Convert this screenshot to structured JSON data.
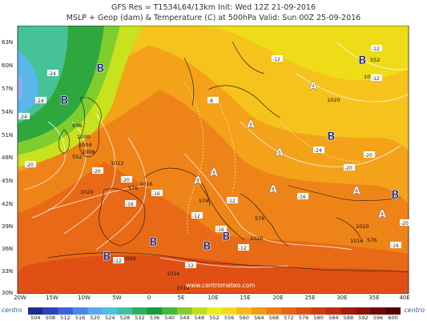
{
  "header": {
    "line1": "GFS Res = T1534L64/13km    Init: Wed 12Z 21-09-2016",
    "line2": "MSLP + Geop (dam) & Temperature (C) at 500hPa   Valid: Sun 00Z 25-09-2016"
  },
  "axes": {
    "lat_labels": [
      "63N",
      "60N",
      "57N",
      "54N",
      "51N",
      "48N",
      "45N",
      "42N",
      "39N",
      "36N",
      "33N",
      "30N"
    ],
    "lon_labels": [
      "20W",
      "15W",
      "10W",
      "5W",
      "0",
      "5E",
      "10E",
      "15E",
      "20E",
      "25E",
      "30E",
      "35E",
      "40E"
    ]
  },
  "colorbar": {
    "values": [
      "504",
      "508",
      "512",
      "516",
      "520",
      "524",
      "528",
      "532",
      "536",
      "540",
      "544",
      "548",
      "552",
      "556",
      "560",
      "564",
      "568",
      "572",
      "576",
      "580",
      "584",
      "588",
      "592",
      "596",
      "600"
    ],
    "colors": [
      "#1b2c8c",
      "#2a44b8",
      "#3b62d8",
      "#4e86e8",
      "#5aa8f0",
      "#4ec2d8",
      "#3fc0a0",
      "#2eae60",
      "#1a9a3a",
      "#43b83a",
      "#86cc2c",
      "#bede1e",
      "#eded1c",
      "#f8d81c",
      "#f8b818",
      "#f49a16",
      "#ee7e14",
      "#e66614",
      "#dc4e12",
      "#d03a10",
      "#c02a0e",
      "#a41c0c",
      "#8a1208",
      "#6e0a06",
      "#500404"
    ]
  },
  "pressure": {
    "low_marker": "B",
    "high_marker": "A",
    "isobar_labels": [
      "996",
      "1000",
      "1004",
      "1008",
      "1012",
      "1016",
      "1020",
      "1020",
      "1020",
      "1020",
      "1016",
      "1016",
      "1016",
      "1020",
      "1020"
    ]
  },
  "height_labels": [
    "552",
    "576",
    "576",
    "576",
    "552",
    "576",
    "576"
  ],
  "temperatures": [
    "-24",
    "-24",
    "-24",
    "-20",
    "-20",
    "-20",
    "-16",
    "-16",
    "-12",
    "-12",
    "-12",
    "-12",
    "-12",
    "-16",
    "-16",
    "-20",
    "-20",
    "-24",
    "-12",
    "-8",
    "-12",
    "-12",
    "-16",
    "-20"
  ],
  "watermark": "www.centrometeo.com",
  "logos": {
    "left": "centro",
    "right": "centro"
  }
}
